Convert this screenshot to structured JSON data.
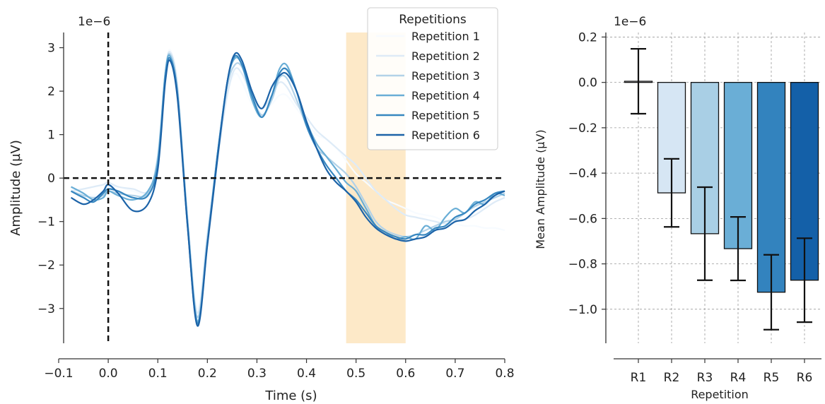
{
  "chart_data": [
    {
      "type": "line",
      "title": "",
      "xlabel": "Time (s)",
      "ylabel": "Amplitude (µV)",
      "offset_label": "1e−6",
      "xlim": [
        -0.09,
        0.8
      ],
      "ylim": [
        -3.8,
        3.35
      ],
      "xticks": [
        -0.1,
        0.0,
        0.1,
        0.2,
        0.3,
        0.4,
        0.5,
        0.6,
        0.7,
        0.8
      ],
      "xtick_labels": [
        "−0.1",
        "0.0",
        "0.1",
        "0.2",
        "0.3",
        "0.4",
        "0.5",
        "0.6",
        "0.7",
        "0.8"
      ],
      "yticks": [
        -3,
        -2,
        -1,
        0,
        1,
        2,
        3
      ],
      "ytick_labels": [
        "−3",
        "−2",
        "−1",
        "0",
        "1",
        "2",
        "3"
      ],
      "shaded_window": [
        0.48,
        0.6
      ],
      "shade_color": "#fde9c8",
      "vline_x": 0,
      "hline_y": 0,
      "legend": {
        "title": "Repetitions",
        "placement": "top-right",
        "labels": [
          "Repetition 1",
          "Repetition 2",
          "Repetition 3",
          "Repetition 4",
          "Repetition 5",
          "Repetition 6"
        ]
      },
      "series": [
        {
          "name": "Repetition 1",
          "color": "#f7fbff",
          "x": [
            -0.075,
            -0.05,
            -0.03,
            -0.01,
            0.0,
            0.02,
            0.05,
            0.08,
            0.1,
            0.115,
            0.125,
            0.14,
            0.16,
            0.18,
            0.2,
            0.22,
            0.24,
            0.255,
            0.27,
            0.29,
            0.31,
            0.33,
            0.345,
            0.36,
            0.38,
            0.4,
            0.42,
            0.44,
            0.46,
            0.48,
            0.5,
            0.52,
            0.54,
            0.56,
            0.58,
            0.6,
            0.62,
            0.64,
            0.66,
            0.68,
            0.7,
            0.72,
            0.74,
            0.76,
            0.78,
            0.8
          ],
          "y": [
            -0.25,
            -0.35,
            -0.4,
            -0.3,
            -0.2,
            -0.2,
            -0.3,
            -0.35,
            0.3,
            2.3,
            2.95,
            2.0,
            -0.9,
            -3.0,
            -1.2,
            0.5,
            1.9,
            2.4,
            2.2,
            1.7,
            1.5,
            1.7,
            1.9,
            1.9,
            1.6,
            1.3,
            1.0,
            0.9,
            0.7,
            0.4,
            0.1,
            -0.1,
            -0.3,
            -0.5,
            -0.6,
            -0.7,
            -0.8,
            -0.85,
            -0.9,
            -1.0,
            -1.05,
            -1.1,
            -1.1,
            -1.15,
            -1.15,
            -1.2
          ]
        },
        {
          "name": "Repetition 2",
          "color": "#deebf7",
          "x": [
            -0.075,
            -0.05,
            -0.03,
            -0.01,
            0.0,
            0.02,
            0.05,
            0.08,
            0.1,
            0.115,
            0.125,
            0.14,
            0.16,
            0.18,
            0.2,
            0.22,
            0.24,
            0.255,
            0.27,
            0.29,
            0.31,
            0.33,
            0.345,
            0.36,
            0.38,
            0.4,
            0.42,
            0.44,
            0.46,
            0.48,
            0.5,
            0.52,
            0.54,
            0.56,
            0.58,
            0.6,
            0.62,
            0.64,
            0.66,
            0.68,
            0.7,
            0.72,
            0.74,
            0.76,
            0.78,
            0.8
          ],
          "y": [
            -0.3,
            -0.25,
            -0.2,
            -0.15,
            -0.1,
            -0.2,
            -0.25,
            -0.3,
            0.4,
            2.4,
            2.9,
            2.1,
            -0.9,
            -3.1,
            -1.3,
            0.4,
            1.9,
            2.5,
            2.4,
            1.9,
            1.6,
            1.9,
            2.2,
            2.1,
            1.7,
            1.4,
            1.1,
            0.9,
            0.7,
            0.5,
            0.3,
            0.0,
            -0.3,
            -0.5,
            -0.7,
            -0.85,
            -0.9,
            -0.95,
            -1.0,
            -1.05,
            -1.0,
            -0.95,
            -0.85,
            -0.7,
            -0.55,
            -0.45
          ]
        },
        {
          "name": "Repetition 3",
          "color": "#b2d2e8",
          "x": [
            -0.075,
            -0.05,
            -0.03,
            -0.01,
            0.0,
            0.02,
            0.05,
            0.08,
            0.1,
            0.115,
            0.125,
            0.14,
            0.16,
            0.18,
            0.2,
            0.22,
            0.24,
            0.255,
            0.27,
            0.29,
            0.31,
            0.33,
            0.345,
            0.36,
            0.38,
            0.4,
            0.42,
            0.44,
            0.46,
            0.48,
            0.5,
            0.52,
            0.54,
            0.56,
            0.58,
            0.6,
            0.62,
            0.64,
            0.66,
            0.68,
            0.7,
            0.72,
            0.74,
            0.76,
            0.78,
            0.8
          ],
          "y": [
            -0.3,
            -0.4,
            -0.45,
            -0.4,
            -0.3,
            -0.35,
            -0.4,
            -0.35,
            0.5,
            2.4,
            2.85,
            2.0,
            -1.0,
            -3.2,
            -1.4,
            0.5,
            2.1,
            2.6,
            2.55,
            1.9,
            1.45,
            1.8,
            2.3,
            2.3,
            1.8,
            1.2,
            0.7,
            0.5,
            0.3,
            0.1,
            -0.2,
            -0.6,
            -1.0,
            -1.2,
            -1.3,
            -1.35,
            -1.3,
            -1.2,
            -1.1,
            -1.0,
            -0.95,
            -0.8,
            -0.65,
            -0.55,
            -0.45,
            -0.35
          ]
        },
        {
          "name": "Repetition 4",
          "color": "#6aaed6",
          "x": [
            -0.075,
            -0.05,
            -0.03,
            -0.01,
            0.0,
            0.02,
            0.05,
            0.08,
            0.1,
            0.115,
            0.125,
            0.14,
            0.16,
            0.18,
            0.2,
            0.22,
            0.24,
            0.255,
            0.27,
            0.29,
            0.31,
            0.33,
            0.345,
            0.36,
            0.38,
            0.4,
            0.42,
            0.44,
            0.46,
            0.48,
            0.5,
            0.52,
            0.54,
            0.56,
            0.58,
            0.6,
            0.62,
            0.64,
            0.66,
            0.68,
            0.7,
            0.72,
            0.74,
            0.76,
            0.78,
            0.8
          ],
          "y": [
            -0.2,
            -0.35,
            -0.5,
            -0.45,
            -0.3,
            -0.4,
            -0.5,
            -0.3,
            0.4,
            2.4,
            2.8,
            1.9,
            -1.0,
            -3.3,
            -1.5,
            0.5,
            2.2,
            2.75,
            2.6,
            1.8,
            1.4,
            1.9,
            2.5,
            2.6,
            2.0,
            1.3,
            0.8,
            0.5,
            0.2,
            -0.1,
            -0.3,
            -0.7,
            -1.1,
            -1.25,
            -1.4,
            -1.35,
            -1.4,
            -1.1,
            -1.2,
            -0.9,
            -0.7,
            -0.8,
            -0.55,
            -0.6,
            -0.35,
            -0.4
          ]
        },
        {
          "name": "Repetition 5",
          "color": "#3787c0",
          "x": [
            -0.075,
            -0.05,
            -0.03,
            -0.01,
            0.0,
            0.02,
            0.05,
            0.08,
            0.1,
            0.115,
            0.125,
            0.14,
            0.16,
            0.18,
            0.2,
            0.22,
            0.24,
            0.255,
            0.27,
            0.29,
            0.31,
            0.33,
            0.345,
            0.36,
            0.38,
            0.4,
            0.42,
            0.44,
            0.46,
            0.48,
            0.5,
            0.52,
            0.54,
            0.56,
            0.58,
            0.6,
            0.62,
            0.64,
            0.66,
            0.68,
            0.7,
            0.72,
            0.74,
            0.76,
            0.78,
            0.8
          ],
          "y": [
            -0.3,
            -0.45,
            -0.55,
            -0.35,
            -0.25,
            -0.3,
            -0.45,
            -0.4,
            0.3,
            2.3,
            2.75,
            1.9,
            -1.1,
            -3.35,
            -1.5,
            0.5,
            2.2,
            2.8,
            2.6,
            1.9,
            1.4,
            1.9,
            2.4,
            2.5,
            2.0,
            1.2,
            0.7,
            0.3,
            0.0,
            -0.3,
            -0.5,
            -0.8,
            -1.1,
            -1.25,
            -1.35,
            -1.4,
            -1.3,
            -1.3,
            -1.15,
            -1.1,
            -0.9,
            -0.8,
            -0.6,
            -0.5,
            -0.35,
            -0.3
          ]
        },
        {
          "name": "Repetition 6",
          "color": "#1c63a8",
          "x": [
            -0.075,
            -0.05,
            -0.03,
            -0.01,
            0.0,
            0.02,
            0.05,
            0.08,
            0.1,
            0.115,
            0.125,
            0.14,
            0.16,
            0.18,
            0.2,
            0.22,
            0.24,
            0.255,
            0.27,
            0.29,
            0.31,
            0.33,
            0.345,
            0.36,
            0.38,
            0.4,
            0.42,
            0.44,
            0.46,
            0.48,
            0.5,
            0.52,
            0.54,
            0.56,
            0.58,
            0.6,
            0.62,
            0.64,
            0.66,
            0.68,
            0.7,
            0.72,
            0.74,
            0.76,
            0.78,
            0.8
          ],
          "y": [
            -0.45,
            -0.6,
            -0.5,
            -0.3,
            -0.15,
            -0.35,
            -0.75,
            -0.6,
            0.2,
            2.2,
            2.7,
            1.8,
            -1.1,
            -3.4,
            -1.55,
            0.4,
            2.2,
            2.85,
            2.7,
            2.0,
            1.6,
            2.1,
            2.35,
            2.4,
            2.0,
            1.3,
            0.7,
            0.2,
            -0.1,
            -0.3,
            -0.55,
            -0.9,
            -1.15,
            -1.3,
            -1.4,
            -1.45,
            -1.4,
            -1.35,
            -1.2,
            -1.15,
            -1.0,
            -0.95,
            -0.75,
            -0.6,
            -0.4,
            -0.3
          ]
        }
      ]
    },
    {
      "type": "bar",
      "title": "",
      "xlabel": "Repetition",
      "ylabel": "Mean Amplitude (µV)",
      "offset_label": "1e−6",
      "ylim": [
        -1.15,
        0.22
      ],
      "yticks": [
        0.2,
        0.0,
        -0.2,
        -0.4,
        -0.6,
        -0.8,
        -1.0
      ],
      "ytick_labels": [
        "0.2",
        "0.0",
        "−0.2",
        "−0.4",
        "−0.6",
        "−0.8",
        "−1.0"
      ],
      "grid": true,
      "categories": [
        "R1",
        "R2",
        "R3",
        "R4",
        "R5",
        "R6"
      ],
      "values": [
        0.005,
        -0.487,
        -0.667,
        -0.733,
        -0.925,
        -0.872
      ],
      "errors": [
        0.143,
        0.15,
        0.205,
        0.14,
        0.165,
        0.185
      ],
      "colors": [
        "#f7fbff",
        "#d6e6f4",
        "#a9cfe5",
        "#6aaed6",
        "#3383be",
        "#1460a8"
      ]
    }
  ]
}
